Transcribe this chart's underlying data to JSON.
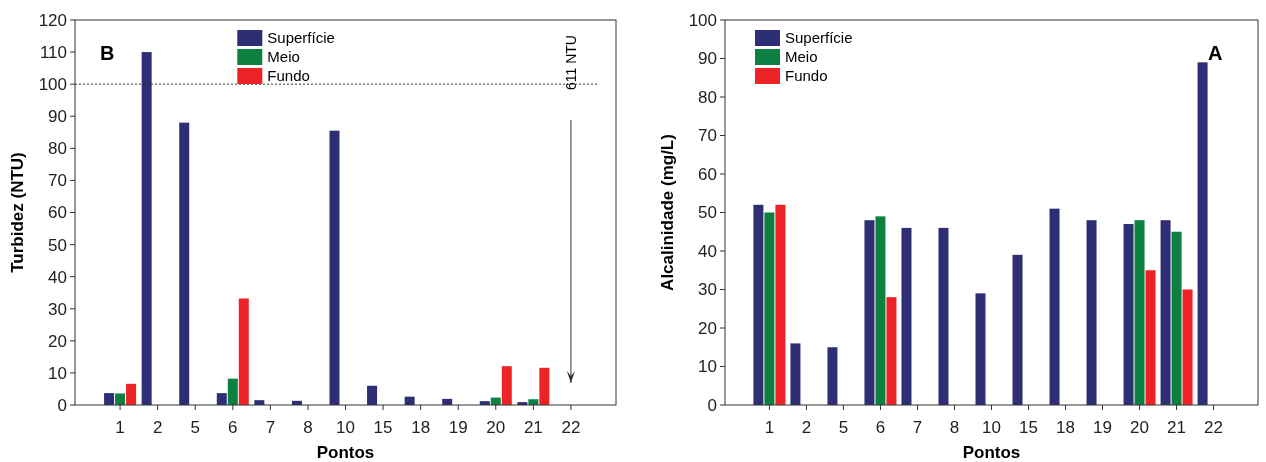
{
  "chart_data": [
    {
      "type": "bar",
      "xlabel": "Pontos",
      "ylabel": "Turbidez (NTU)",
      "categories": [
        "1",
        "2",
        "5",
        "6",
        "7",
        "8",
        "10",
        "15",
        "18",
        "19",
        "20",
        "21",
        "22"
      ],
      "series": [
        {
          "name": "Superfície",
          "color": "#2e2e74",
          "values": [
            3.7,
            110,
            88,
            3.7,
            1.5,
            1.3,
            85.5,
            6,
            2.6,
            1.9,
            1.2,
            0.9,
            null
          ]
        },
        {
          "name": "Meio",
          "color": "#0b8040",
          "values": [
            3.6,
            null,
            null,
            8.2,
            null,
            null,
            null,
            null,
            null,
            null,
            2.3,
            1.8,
            null
          ]
        },
        {
          "name": "Fundo",
          "color": "#ec2227",
          "values": [
            6.6,
            null,
            null,
            33.2,
            null,
            null,
            null,
            null,
            null,
            null,
            12.1,
            11.6,
            null
          ]
        }
      ],
      "ylim": [
        0,
        120
      ],
      "yticks": [
        0,
        10,
        20,
        30,
        40,
        50,
        60,
        70,
        80,
        90,
        100,
        110,
        120
      ],
      "ref_lines": [
        {
          "axis": "y",
          "value": 100,
          "line_style": "dotted"
        }
      ],
      "annotations": [
        "B",
        "611 NTU"
      ],
      "legend": "top",
      "grid": false
    },
    {
      "type": "bar",
      "xlabel": "Pontos",
      "ylabel": "Alcalinidade (mg/L)",
      "categories": [
        "1",
        "2",
        "5",
        "6",
        "7",
        "8",
        "10",
        "15",
        "18",
        "19",
        "20",
        "21",
        "22"
      ],
      "series": [
        {
          "name": "Superfície",
          "color": "#2e2e74",
          "values": [
            52,
            16,
            15,
            48,
            46,
            46,
            29,
            39,
            51,
            48,
            47,
            48,
            89
          ]
        },
        {
          "name": "Meio",
          "color": "#0b8040",
          "values": [
            50,
            null,
            null,
            49,
            null,
            null,
            null,
            null,
            null,
            null,
            48,
            45,
            null
          ]
        },
        {
          "name": "Fundo",
          "color": "#ec2227",
          "values": [
            52,
            null,
            null,
            28,
            null,
            null,
            null,
            null,
            null,
            null,
            35,
            30,
            null
          ]
        }
      ],
      "ylim": [
        0,
        100
      ],
      "yticks": [
        0,
        10,
        20,
        30,
        40,
        50,
        60,
        70,
        80,
        90,
        100
      ],
      "annotations": [
        "A"
      ],
      "legend": "top left",
      "grid": false
    }
  ]
}
